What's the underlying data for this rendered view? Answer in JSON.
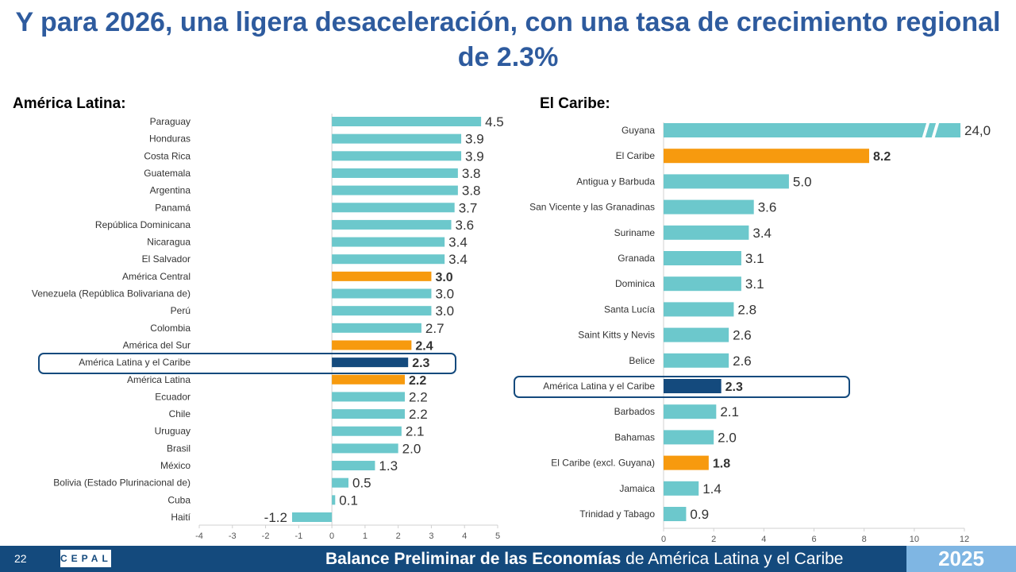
{
  "title": "Y para 2026, una ligera desaceleración, con una tasa de crecimiento regional de 2.3%",
  "colors": {
    "country": "#6cc8cc",
    "subregion": "#f79a0e",
    "region": "#144a7d",
    "title": "#2e5b9e"
  },
  "chart_data": [
    {
      "type": "bar",
      "orientation": "horizontal",
      "title": "América Latina:",
      "xlim": [
        -4,
        5
      ],
      "xticks": [
        -4,
        -3,
        -2,
        -1,
        0,
        1,
        2,
        3,
        4,
        5
      ],
      "categories": [
        "Paraguay",
        "Honduras",
        "Costa Rica",
        "Guatemala",
        "Argentina",
        "Panamá",
        "República Dominicana",
        "Nicaragua",
        "El Salvador",
        "América Central",
        "Venezuela (República Bolivariana de)",
        "Perú",
        "Colombia",
        "América del Sur",
        "América Latina y el Caribe",
        "América Latina",
        "Ecuador",
        "Chile",
        "Uruguay",
        "Brasil",
        "México",
        "Bolivia (Estado Plurinacional de)",
        "Cuba",
        "Haití"
      ],
      "values": [
        4.5,
        3.9,
        3.9,
        3.8,
        3.8,
        3.7,
        3.6,
        3.4,
        3.4,
        3.0,
        3.0,
        3.0,
        2.7,
        2.4,
        2.3,
        2.2,
        2.2,
        2.2,
        2.1,
        2.0,
        1.3,
        0.5,
        0.1,
        -1.2
      ],
      "labels": [
        "4.5",
        "3.9",
        "3.9",
        "3.8",
        "3.8",
        "3.7",
        "3.6",
        "3.4",
        "3.4",
        "3.0",
        "3.0",
        "3.0",
        "2.7",
        "2.4",
        "2.3",
        "2.2",
        "2.2",
        "2.2",
        "2.1",
        "2.0",
        "1.3",
        "0.5",
        "0.1",
        "-1.2"
      ],
      "kinds": [
        "c",
        "c",
        "c",
        "c",
        "c",
        "c",
        "c",
        "c",
        "c",
        "s",
        "c",
        "c",
        "c",
        "s",
        "r",
        "s",
        "c",
        "c",
        "c",
        "c",
        "c",
        "c",
        "c",
        "c"
      ],
      "highlighted": "América Latina y el Caribe"
    },
    {
      "type": "bar",
      "orientation": "horizontal",
      "title": "El Caribe:",
      "xlim": [
        0,
        12
      ],
      "xticks": [
        0,
        2,
        4,
        6,
        8,
        10,
        12
      ],
      "axis_break": "Guyana",
      "categories": [
        "Guyana",
        "El Caribe",
        "Antigua y Barbuda",
        "San Vicente y las Granadinas",
        "Suriname",
        "Granada",
        "Dominica",
        "Santa Lucía",
        "Saint Kitts y Nevis",
        "Belice",
        "América Latina y el Caribe",
        "Barbados",
        "Bahamas",
        "El Caribe (excl. Guyana)",
        "Jamaica",
        "Trinidad y Tabago"
      ],
      "values": [
        24.0,
        8.2,
        5.0,
        3.6,
        3.4,
        3.1,
        3.1,
        2.8,
        2.6,
        2.6,
        2.3,
        2.1,
        2.0,
        1.8,
        1.4,
        0.9
      ],
      "labels": [
        "24,0",
        "8.2",
        "5.0",
        "3.6",
        "3.4",
        "3.1",
        "3.1",
        "2.8",
        "2.6",
        "2.6",
        "2.3",
        "2.1",
        "2.0",
        "1.8",
        "1.4",
        "0.9"
      ],
      "kinds": [
        "c",
        "s",
        "c",
        "c",
        "c",
        "c",
        "c",
        "c",
        "c",
        "c",
        "r",
        "c",
        "c",
        "s",
        "c",
        "c"
      ],
      "highlighted": "América Latina y el Caribe"
    }
  ],
  "footer": {
    "page": "22",
    "logo": "CEPAL",
    "text_bold": "Balance Preliminar de las Economías",
    "text_rest": " de América Latina y el Caribe",
    "year": "2025"
  }
}
